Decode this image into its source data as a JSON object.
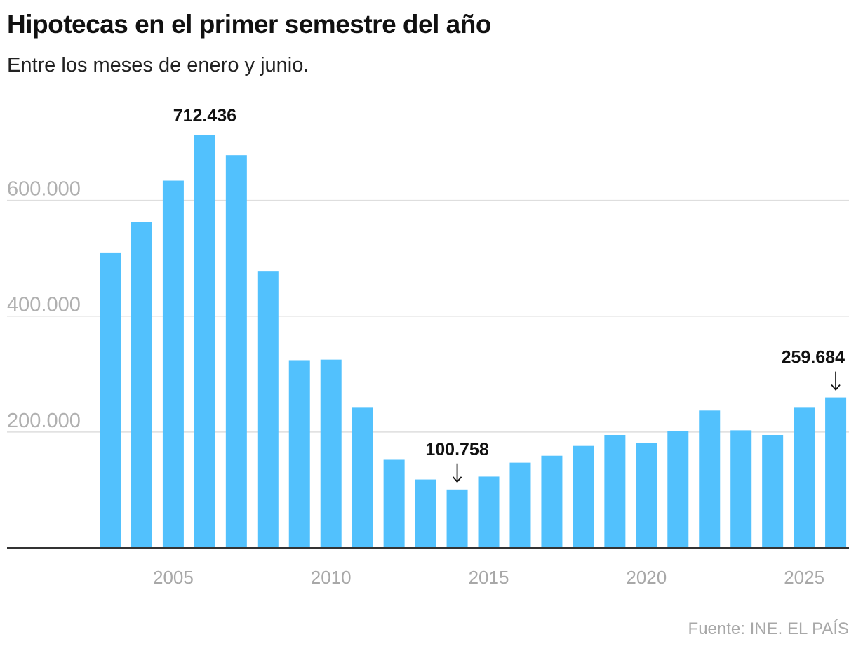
{
  "header": {
    "title": "Hipotecas en el primer semestre del año",
    "subtitle": "Entre los meses de enero y junio."
  },
  "footer": {
    "source": "Fuente: INE. EL PAÍS"
  },
  "colors": {
    "bar": "#52c1fd",
    "gridline": "#dedede",
    "axis": "#333333",
    "tick_label": "#a8a8a8",
    "annotation": "#111111"
  },
  "chart_data": {
    "type": "bar",
    "title": "Hipotecas en el primer semestre del año",
    "subtitle": "Entre los meses de enero y junio.",
    "xlabel": "",
    "ylabel": "",
    "categories": [
      2003,
      2004,
      2005,
      2006,
      2007,
      2008,
      2009,
      2010,
      2011,
      2012,
      2013,
      2014,
      2015,
      2016,
      2017,
      2018,
      2019,
      2020,
      2021,
      2022,
      2023,
      2024,
      2025,
      2026
    ],
    "values": [
      510000,
      563000,
      634000,
      712436,
      678000,
      477000,
      324000,
      325000,
      243000,
      152000,
      118000,
      100758,
      123000,
      147000,
      159000,
      176000,
      195000,
      181000,
      202000,
      237000,
      203000,
      195000,
      243000,
      259684
    ],
    "ylim": [
      0,
      740000
    ],
    "yticks": [
      200000,
      400000,
      600000
    ],
    "ytick_labels": [
      "200.000",
      "400.000",
      "600.000"
    ],
    "xticks": [
      2005,
      2010,
      2015,
      2020,
      2025
    ],
    "xtick_labels": [
      "2005",
      "2010",
      "2015",
      "2020",
      "2025"
    ],
    "grid": true,
    "annotations": [
      {
        "category": 2006,
        "label": "712.436",
        "arrow": false
      },
      {
        "category": 2014,
        "label": "100.758",
        "arrow": true
      },
      {
        "category": 2026,
        "label": "259.684",
        "arrow": true
      }
    ],
    "source": "Fuente: INE. EL PAÍS"
  }
}
